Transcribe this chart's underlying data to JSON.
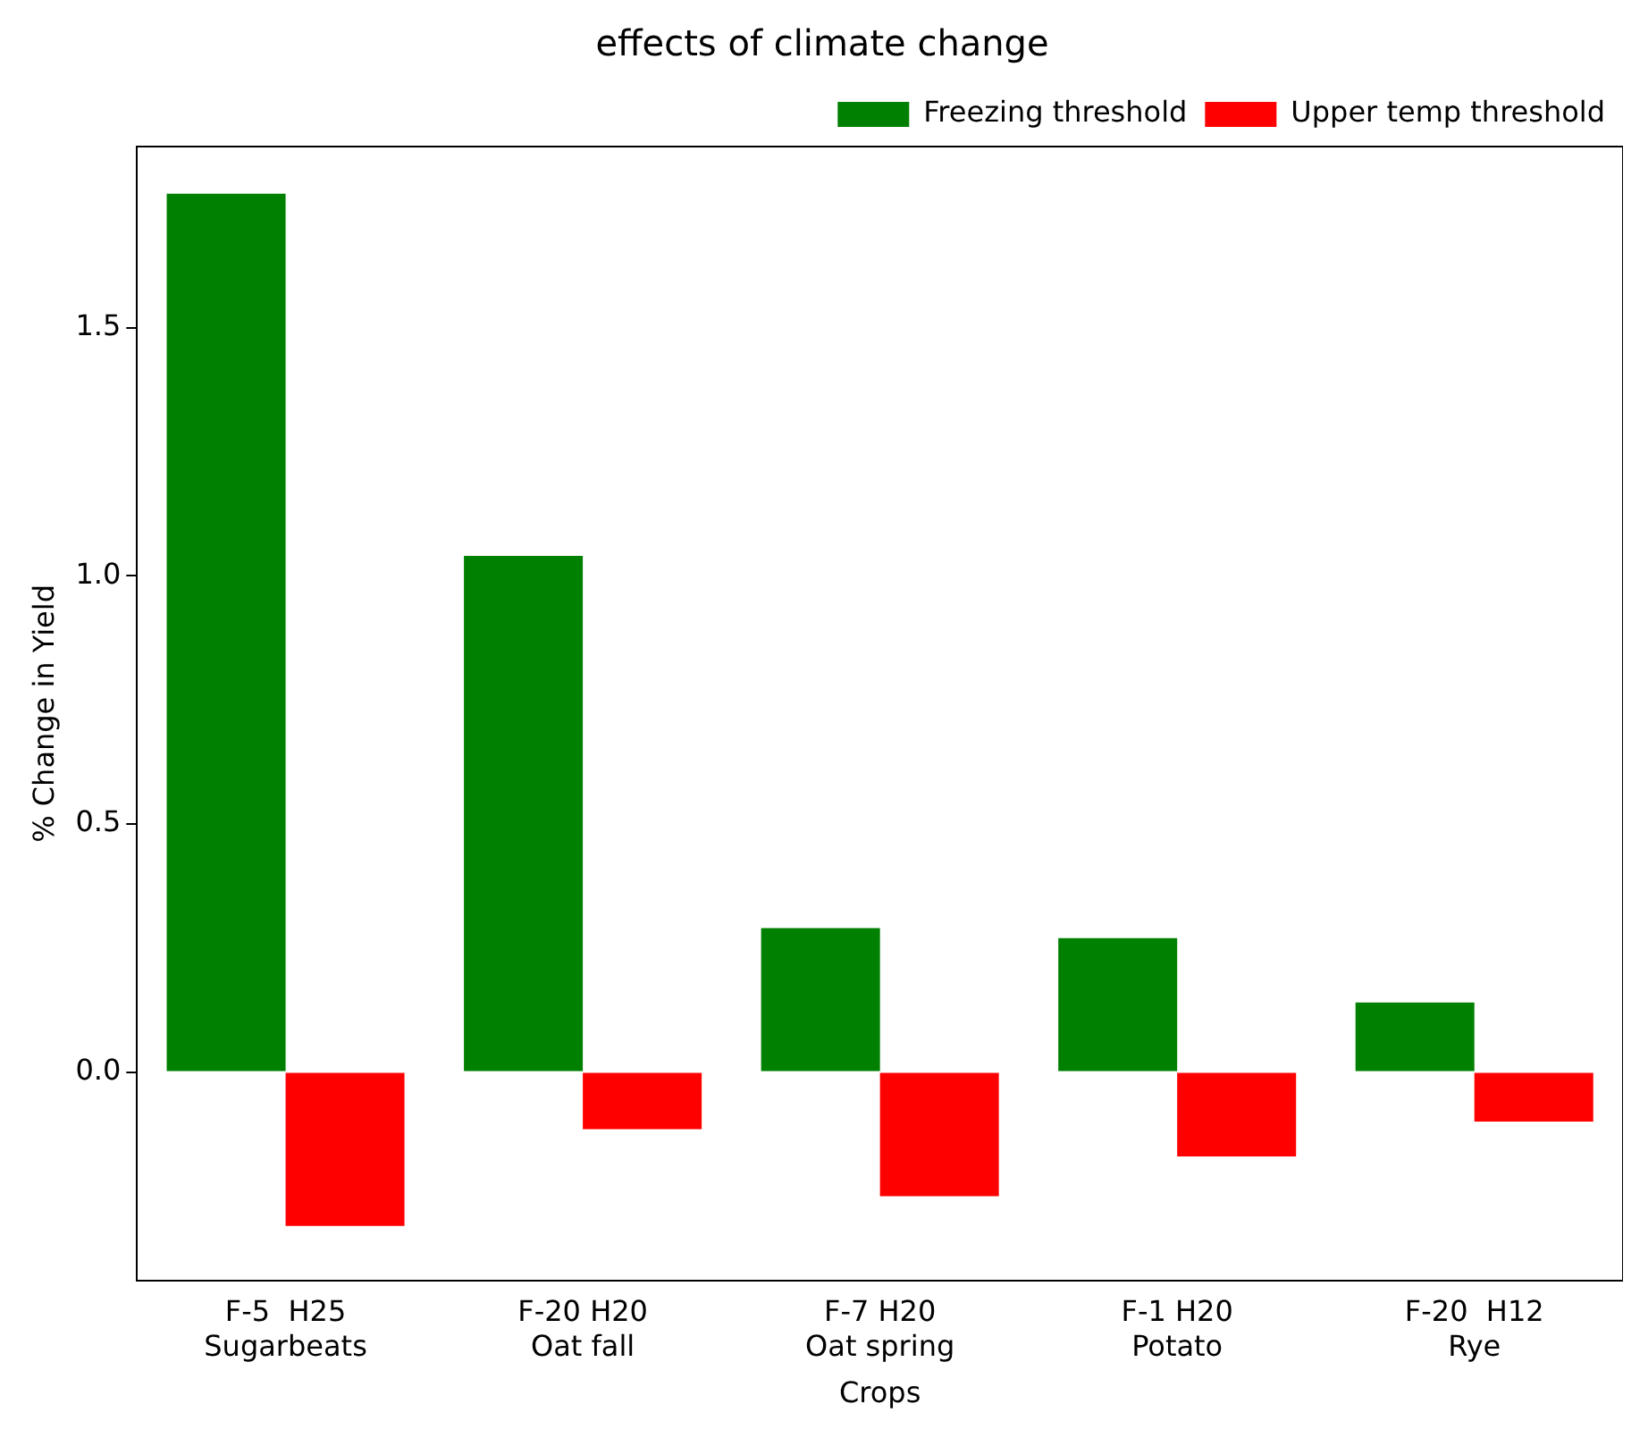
{
  "chart_data": {
    "type": "bar",
    "title": "effects of climate change",
    "xlabel": "Crops",
    "ylabel": "% Change in Yield",
    "categories": [
      "F-5  H25\nSugarbeats",
      "F-20 H20\nOat fall",
      "F-7 H20\nOat spring",
      "F-1 H20\nPotato",
      "F-20  H12\nRye"
    ],
    "series": [
      {
        "name": "Freezing threshold",
        "color": "#008000",
        "values": [
          1.77,
          1.04,
          0.29,
          0.27,
          0.14
        ]
      },
      {
        "name": "Upper temp threshold",
        "color": "#ff0000",
        "values": [
          -0.31,
          -0.115,
          -0.25,
          -0.17,
          -0.1
        ]
      }
    ],
    "ylim": [
      -0.42,
      1.865
    ],
    "yticks": [
      {
        "value": 0,
        "label": "0.0"
      },
      {
        "value": 0.5,
        "label": "0.5"
      },
      {
        "value": 1,
        "label": "1.0"
      },
      {
        "value": 1.5,
        "label": "1.5"
      }
    ],
    "grid": false,
    "legend": "top right"
  }
}
